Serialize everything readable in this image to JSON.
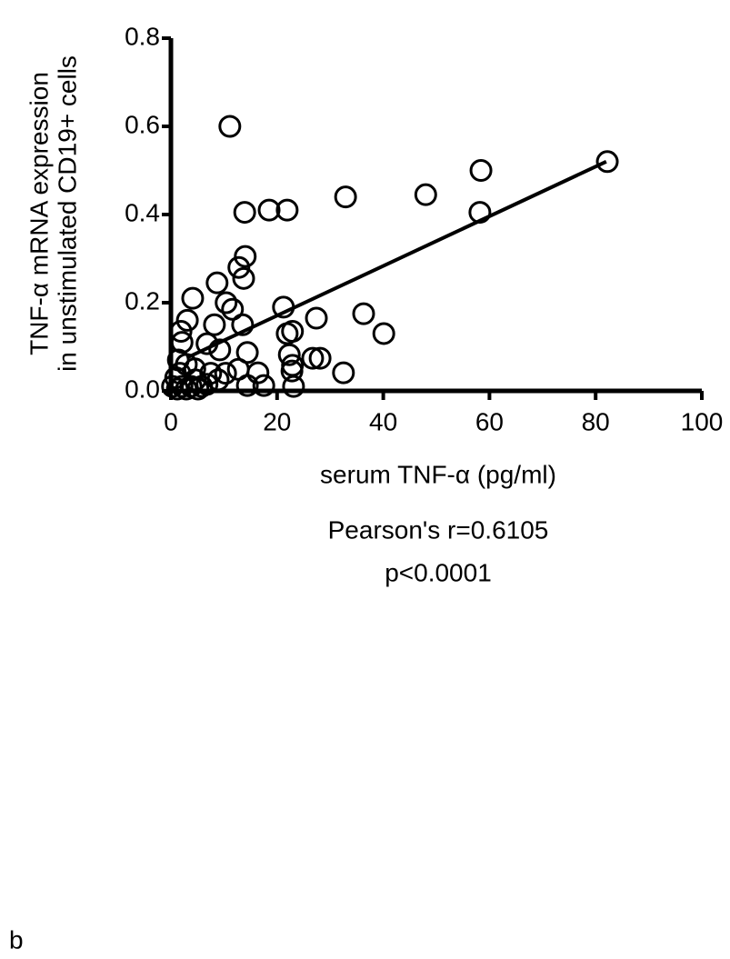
{
  "chart_data": {
    "type": "scatter",
    "x_label": "serum TNF-α (pg/ml)",
    "y_label": [
      "TNF-α mRNA expression",
      "in unstimulated CD19+ cells"
    ],
    "annotations": [
      "Pearson's r=0.6105",
      "p<0.0001"
    ],
    "panel_label": "b",
    "xlim": [
      0,
      100
    ],
    "xticks": [
      0,
      20,
      40,
      60,
      80,
      100
    ],
    "ylim": [
      0,
      0.8
    ],
    "yticks": [
      {
        "value": 0,
        "label": "0.0"
      },
      0.2,
      0.4,
      0.6,
      0.8
    ],
    "color": "#000000",
    "x": [
      11.1,
      58.4,
      82.2,
      58.2,
      48.0,
      32.9,
      13.9,
      18.5,
      21.9,
      14.0,
      12.8,
      13.7,
      8.7,
      4.1,
      10.4,
      11.6,
      21.2,
      8.2,
      3.1,
      1.9,
      13.5,
      27.4,
      36.3,
      40.1,
      22.9,
      21.9,
      6.8,
      2.1,
      9.2,
      14.4,
      22.3,
      22.9,
      26.7,
      28.1,
      32.5,
      16.4,
      12.7,
      22.8,
      14.4,
      17.5,
      23.1,
      4.5,
      7.5,
      10.3,
      0.9,
      1.7,
      2.9,
      1.4,
      0.3,
      2.1,
      3.8,
      5.8,
      4.6,
      8.9,
      1.2,
      2.9,
      5.1,
      6.8
    ],
    "values": [
      0.6,
      0.5,
      0.52,
      0.405,
      0.445,
      0.44,
      0.405,
      0.41,
      0.41,
      0.305,
      0.28,
      0.255,
      0.245,
      0.21,
      0.2,
      0.185,
      0.19,
      0.15,
      0.16,
      0.135,
      0.15,
      0.165,
      0.175,
      0.13,
      0.135,
      0.13,
      0.107,
      0.11,
      0.093,
      0.087,
      0.082,
      0.058,
      0.074,
      0.074,
      0.041,
      0.041,
      0.049,
      0.045,
      0.012,
      0.012,
      0.01,
      0.05,
      0.04,
      0.04,
      0.03,
      0.04,
      0.06,
      0.07,
      0.01,
      0.01,
      0.01,
      0.01,
      0.025,
      0.025,
      0.004,
      0.004,
      0.004,
      0.015
    ],
    "fit": {
      "x": [
        3,
        82
      ],
      "values": [
        0.075,
        0.52
      ]
    }
  }
}
